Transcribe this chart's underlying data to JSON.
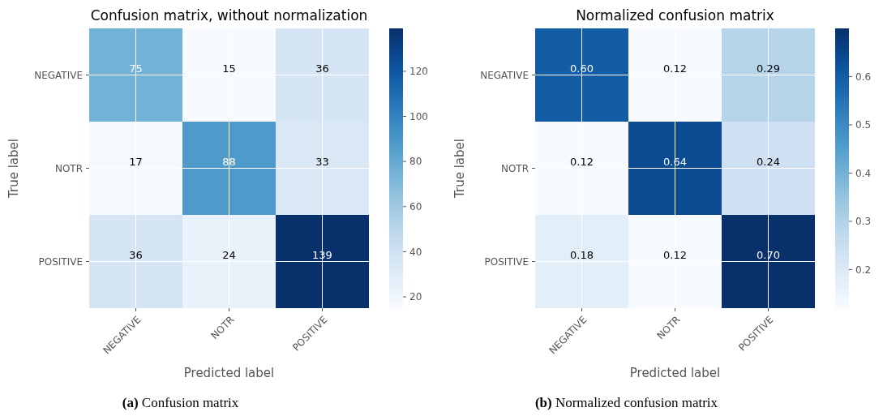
{
  "chart_data": [
    {
      "type": "heatmap",
      "title": "Confusion matrix, without normalization",
      "xlabel": "Predicted label",
      "ylabel": "True label",
      "categories": [
        "NEGATIVE",
        "NOTR",
        "POSITIVE"
      ],
      "y_categories": [
        "NEGATIVE",
        "NOTR",
        "POSITIVE"
      ],
      "cells": [
        [
          75,
          15,
          36
        ],
        [
          17,
          88,
          33
        ],
        [
          36,
          24,
          139
        ]
      ],
      "clim": [
        15,
        139
      ],
      "cticks": [
        20,
        40,
        60,
        80,
        100,
        120
      ],
      "grid": true,
      "data_labels": true,
      "annotations": [
        "(a) Confusion matrix"
      ]
    },
    {
      "type": "heatmap",
      "title": "Normalized confusion matrix",
      "xlabel": "Predicted label",
      "ylabel": "True label",
      "categories": [
        "NEGATIVE",
        "NOTR",
        "POSITIVE"
      ],
      "y_categories": [
        "NEGATIVE",
        "NOTR",
        "POSITIVE"
      ],
      "cells": [
        [
          0.6,
          0.12,
          0.29
        ],
        [
          0.12,
          0.64,
          0.24
        ],
        [
          0.18,
          0.12,
          0.7
        ]
      ],
      "cell_labels": [
        [
          "0.60",
          "0.12",
          "0.29"
        ],
        [
          "0.12",
          "0.64",
          "0.24"
        ],
        [
          "0.18",
          "0.12",
          "0.70"
        ]
      ],
      "clim": [
        0.12,
        0.7
      ],
      "cticks": [
        0.2,
        0.3,
        0.4,
        0.5,
        0.6
      ],
      "grid": true,
      "annotations": [
        "(b) Normalized confusion matrix"
      ]
    }
  ]
}
